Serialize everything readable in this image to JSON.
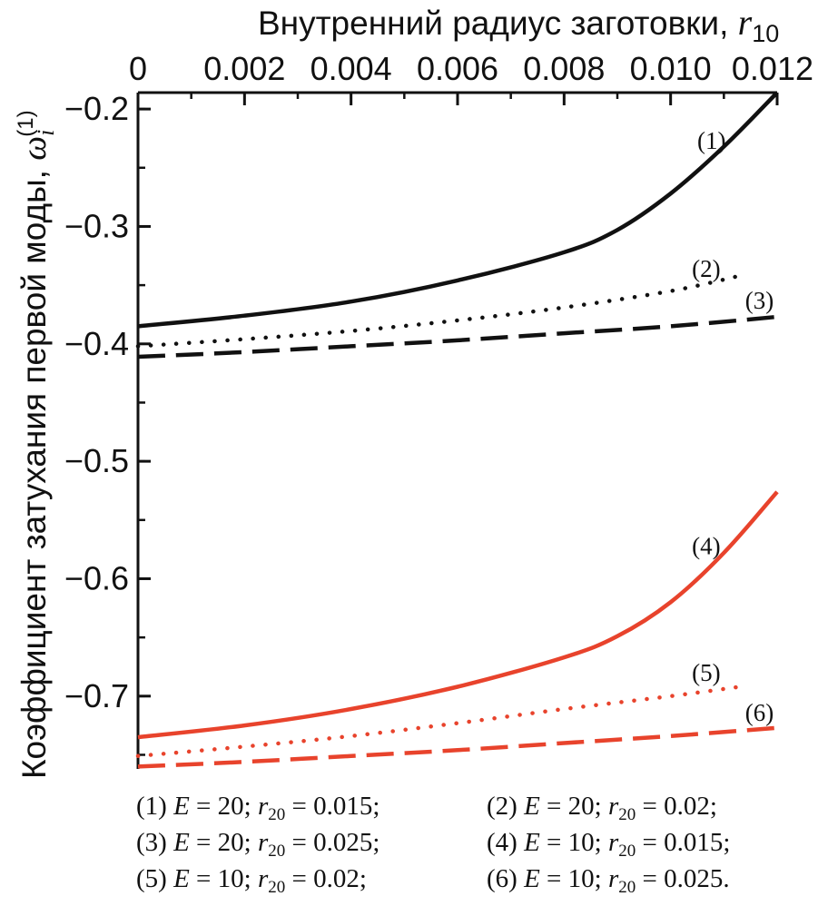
{
  "chart_data": {
    "type": "line",
    "xlabel_text": "Внутренний радиус заготовки, ",
    "xlabel_symbol": "r",
    "xlabel_subscript": "10",
    "ylabel_text": "Коэффициент затухания первой моды, ",
    "ylabel_symbol": "ω",
    "ylabel_subscript": "i",
    "ylabel_superscript": "(1)",
    "x_ticks": [
      0,
      0.002,
      0.004,
      0.006,
      0.008,
      0.01,
      0.012
    ],
    "x_tick_labels": [
      "0",
      "0.002",
      "0.004",
      "0.006",
      "0.008",
      "0.010",
      "0.012"
    ],
    "y_ticks": [
      -0.2,
      -0.3,
      -0.4,
      -0.5,
      -0.6,
      -0.7
    ],
    "y_tick_labels": [
      "−0.2",
      "−0.3",
      "−0.4",
      "−0.5",
      "−0.6",
      "−0.7"
    ],
    "xlim": [
      0,
      0.012
    ],
    "ylim": [
      -0.762,
      -0.186
    ],
    "x_axis_position": "top",
    "grid": false,
    "colors": {
      "black": "#111111",
      "red": "#e8432c"
    },
    "series": [
      {
        "name": "(1)",
        "color": "#111111",
        "style": "solid",
        "x": [
          0,
          0.002,
          0.004,
          0.006,
          0.008,
          0.009,
          0.01,
          0.011,
          0.012
        ],
        "y": [
          -0.385,
          -0.376,
          -0.364,
          -0.346,
          -0.322,
          -0.303,
          -0.272,
          -0.232,
          -0.186
        ]
      },
      {
        "name": "(2)",
        "color": "#111111",
        "style": "dotted",
        "x": [
          0,
          0.002,
          0.004,
          0.006,
          0.008,
          0.01,
          0.0113
        ],
        "y": [
          -0.402,
          -0.396,
          -0.389,
          -0.38,
          -0.369,
          -0.355,
          -0.342
        ]
      },
      {
        "name": "(3)",
        "color": "#111111",
        "style": "dashed",
        "x": [
          0,
          0.002,
          0.004,
          0.006,
          0.008,
          0.01,
          0.012
        ],
        "y": [
          -0.411,
          -0.407,
          -0.402,
          -0.397,
          -0.391,
          -0.385,
          -0.377
        ]
      },
      {
        "name": "(4)",
        "color": "#e8432c",
        "style": "solid",
        "x": [
          0,
          0.002,
          0.004,
          0.006,
          0.008,
          0.009,
          0.01,
          0.011,
          0.012
        ],
        "y": [
          -0.735,
          -0.725,
          -0.711,
          -0.692,
          -0.667,
          -0.649,
          -0.62,
          -0.578,
          -0.526
        ]
      },
      {
        "name": "(5)",
        "color": "#e8432c",
        "style": "dotted",
        "x": [
          0,
          0.002,
          0.004,
          0.006,
          0.008,
          0.01,
          0.0113
        ],
        "y": [
          -0.751,
          -0.743,
          -0.734,
          -0.723,
          -0.711,
          -0.7,
          -0.692
        ]
      },
      {
        "name": "(6)",
        "color": "#e8432c",
        "style": "dashed",
        "x": [
          0,
          0.002,
          0.004,
          0.006,
          0.008,
          0.01,
          0.012
        ],
        "y": [
          -0.76,
          -0.756,
          -0.751,
          -0.746,
          -0.74,
          -0.734,
          -0.727
        ]
      }
    ],
    "curve_labels": [
      {
        "text": "(1)",
        "x": 0.0105,
        "y": -0.227
      },
      {
        "text": "(2)",
        "x": 0.0104,
        "y": -0.336
      },
      {
        "text": "(3)",
        "x": 0.0114,
        "y": -0.363
      },
      {
        "text": "(4)",
        "x": 0.0104,
        "y": -0.572
      },
      {
        "text": "(5)",
        "x": 0.0104,
        "y": -0.68
      },
      {
        "text": "(6)",
        "x": 0.0114,
        "y": -0.714
      }
    ],
    "legend": [
      {
        "id": "(1)",
        "E": "20",
        "r20": "0.015",
        "end": ";"
      },
      {
        "id": "(2)",
        "E": "20",
        "r20": "0.02",
        "end": ";"
      },
      {
        "id": "(3)",
        "E": "20",
        "r20": "0.025",
        "end": ";"
      },
      {
        "id": "(4)",
        "E": "10",
        "r20": "0.015",
        "end": ";"
      },
      {
        "id": "(5)",
        "E": "10",
        "r20": "0.02",
        "end": ";"
      },
      {
        "id": "(6)",
        "E": "10",
        "r20": "0.025",
        "end": "."
      }
    ]
  }
}
